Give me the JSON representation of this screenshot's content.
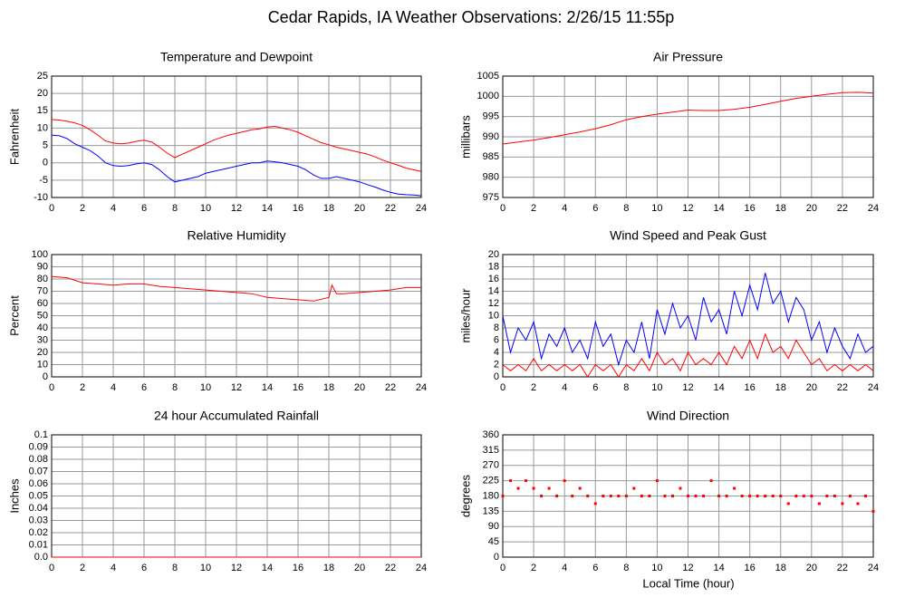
{
  "title": "Cedar Rapids, IA Weather Observations: 2/26/15 11:55p",
  "xlabel": "Local Time (hour)",
  "chart_data": [
    {
      "type": "line",
      "title": "Temperature and Dewpoint",
      "ylabel": "Fahrenheit",
      "x": [
        0,
        0.5,
        1,
        1.5,
        2,
        2.5,
        3,
        3.5,
        4,
        4.5,
        5,
        5.5,
        6,
        6.5,
        7,
        7.5,
        8,
        8.5,
        9,
        9.5,
        10,
        10.5,
        11,
        11.5,
        12,
        12.5,
        13,
        13.5,
        14,
        14.5,
        15,
        15.5,
        16,
        16.5,
        17,
        17.5,
        18,
        18.5,
        19,
        19.5,
        20,
        20.5,
        21,
        21.5,
        22,
        22.5,
        23,
        23.5,
        24
      ],
      "series": [
        {
          "color": "#ff0000",
          "values": [
            12.5,
            12.3,
            12,
            11.5,
            10.8,
            9.5,
            8,
            6.3,
            5.7,
            5.5,
            5.7,
            6.2,
            6.5,
            6,
            4.5,
            2.8,
            1.5,
            2.5,
            3.5,
            4.5,
            5.5,
            6.5,
            7.3,
            8,
            8.5,
            9,
            9.5,
            9.8,
            10.3,
            10.5,
            10,
            9.5,
            8.8,
            7.8,
            6.8,
            5.8,
            5.2,
            4.5,
            4,
            3.5,
            3,
            2.5,
            1.7,
            0.8,
            0,
            -0.7,
            -1.5,
            -2,
            -2.5
          ]
        },
        {
          "color": "#0000ff",
          "values": [
            8,
            7.8,
            7,
            5.5,
            4.5,
            3.5,
            2,
            0,
            -0.8,
            -1,
            -0.8,
            -0.3,
            0,
            -0.5,
            -2,
            -4,
            -5.5,
            -5,
            -4.5,
            -4,
            -3,
            -2.5,
            -2,
            -1.5,
            -1,
            -0.5,
            0,
            0,
            0.5,
            0.3,
            0,
            -0.5,
            -1,
            -2,
            -3.5,
            -4.5,
            -4.5,
            -4,
            -4.5,
            -5,
            -5.5,
            -6.3,
            -7,
            -7.8,
            -8.5,
            -9,
            -9.2,
            -9.3,
            -9.5
          ]
        }
      ],
      "xlim": [
        0,
        24
      ],
      "xticks": [
        0,
        2,
        4,
        6,
        8,
        10,
        12,
        14,
        16,
        18,
        20,
        22,
        24
      ],
      "ylim": [
        -10,
        25
      ],
      "yticks": [
        -10,
        -5,
        0,
        5,
        10,
        15,
        20,
        25
      ],
      "grid": true
    },
    {
      "type": "line",
      "title": "Air Pressure",
      "ylabel": "millibars",
      "x": [
        0,
        1,
        2,
        3,
        4,
        5,
        6,
        7,
        8,
        9,
        10,
        11,
        12,
        13,
        14,
        15,
        16,
        17,
        18,
        19,
        20,
        21,
        22,
        23,
        24
      ],
      "series": [
        {
          "color": "#ff0000",
          "values": [
            988.2,
            988.7,
            989.2,
            989.8,
            990.5,
            991.2,
            992,
            993,
            994.2,
            995,
            995.6,
            996.1,
            996.6,
            996.5,
            996.5,
            996.8,
            997.3,
            998,
            998.8,
            999.5,
            1000,
            1000.5,
            1000.9,
            1001,
            1000.8
          ]
        }
      ],
      "xlim": [
        0,
        24
      ],
      "xticks": [
        0,
        2,
        4,
        6,
        8,
        10,
        12,
        14,
        16,
        18,
        20,
        22,
        24
      ],
      "ylim": [
        975,
        1005
      ],
      "yticks": [
        975,
        980,
        985,
        990,
        995,
        1000,
        1005
      ],
      "grid": true
    },
    {
      "type": "line",
      "title": "Relative Humidity",
      "ylabel": "Percent",
      "x": [
        0,
        1,
        2,
        3,
        4,
        5,
        6,
        7,
        8,
        9,
        10,
        11,
        12,
        13,
        14,
        15,
        16,
        17,
        18,
        18.2,
        18.5,
        19,
        20,
        21,
        22,
        23,
        24
      ],
      "series": [
        {
          "color": "#ff0000",
          "values": [
            82,
            81,
            77,
            76,
            75,
            76,
            76,
            74,
            73,
            72,
            71,
            70,
            69,
            68,
            65,
            64,
            63,
            62,
            65,
            75,
            68,
            68,
            69,
            70,
            71,
            73,
            73
          ]
        }
      ],
      "xlim": [
        0,
        24
      ],
      "xticks": [
        0,
        2,
        4,
        6,
        8,
        10,
        12,
        14,
        16,
        18,
        20,
        22,
        24
      ],
      "ylim": [
        0,
        100
      ],
      "yticks": [
        0,
        10,
        20,
        30,
        40,
        50,
        60,
        70,
        80,
        90,
        100
      ],
      "grid": true
    },
    {
      "type": "line",
      "title": "Wind Speed and Peak Gust",
      "ylabel": "miles/hour",
      "x": [
        0,
        0.5,
        1,
        1.5,
        2,
        2.5,
        3,
        3.5,
        4,
        4.5,
        5,
        5.5,
        6,
        6.5,
        7,
        7.5,
        8,
        8.5,
        9,
        9.5,
        10,
        10.5,
        11,
        11.5,
        12,
        12.5,
        13,
        13.5,
        14,
        14.5,
        15,
        15.5,
        16,
        16.5,
        17,
        17.5,
        18,
        18.5,
        19,
        19.5,
        20,
        20.5,
        21,
        21.5,
        22,
        22.5,
        23,
        23.5,
        24
      ],
      "series": [
        {
          "color": "#0000ff",
          "values": [
            10,
            4,
            8,
            6,
            9,
            3,
            7,
            5,
            8,
            4,
            6,
            3,
            9,
            5,
            7,
            2,
            6,
            4,
            9,
            3,
            11,
            7,
            12,
            8,
            10,
            6,
            13,
            9,
            11,
            7,
            14,
            10,
            15,
            11,
            17,
            12,
            14,
            9,
            13,
            11,
            6,
            9,
            4,
            8,
            5,
            3,
            7,
            4,
            5
          ]
        },
        {
          "color": "#ff0000",
          "values": [
            2,
            1,
            2,
            1,
            3,
            1,
            2,
            1,
            2,
            1,
            2,
            0,
            2,
            1,
            2,
            0,
            2,
            1,
            3,
            1,
            4,
            2,
            3,
            1,
            4,
            2,
            3,
            2,
            4,
            2,
            5,
            3,
            6,
            3,
            7,
            4,
            5,
            3,
            6,
            4,
            2,
            3,
            1,
            2,
            1,
            2,
            1,
            2,
            1
          ]
        }
      ],
      "xlim": [
        0,
        24
      ],
      "xticks": [
        0,
        2,
        4,
        6,
        8,
        10,
        12,
        14,
        16,
        18,
        20,
        22,
        24
      ],
      "ylim": [
        0,
        20
      ],
      "yticks": [
        0,
        2,
        4,
        6,
        8,
        10,
        12,
        14,
        16,
        18,
        20
      ],
      "grid": true
    },
    {
      "type": "line",
      "title": "24 hour Accumulated Rainfall",
      "ylabel": "Inches",
      "x": [
        0,
        24
      ],
      "series": [
        {
          "color": "#ff0000",
          "values": [
            0,
            0
          ]
        }
      ],
      "xlim": [
        0,
        24
      ],
      "xticks": [
        0,
        2,
        4,
        6,
        8,
        10,
        12,
        14,
        16,
        18,
        20,
        22,
        24
      ],
      "ylim": [
        0,
        0.1
      ],
      "yticks": [
        {
          "value": 0,
          "label": "0.0"
        },
        0.01,
        0.02,
        0.03,
        0.04,
        0.05,
        0.06,
        0.07,
        0.08,
        0.09,
        0.1
      ],
      "grid": true
    },
    {
      "type": "scatter",
      "title": "Wind Direction",
      "ylabel": "degrees",
      "x": [
        0,
        0.5,
        1,
        1.5,
        2,
        2.5,
        3,
        3.5,
        4,
        4.5,
        5,
        5.5,
        6,
        6.5,
        7,
        7.5,
        8,
        8.5,
        9,
        9.5,
        10,
        10.5,
        11,
        11.5,
        12,
        12.5,
        13,
        13.5,
        14,
        14.5,
        15,
        15.5,
        16,
        16.5,
        17,
        17.5,
        18,
        18.5,
        19,
        19.5,
        20,
        20.5,
        21,
        21.5,
        22,
        22.5,
        23,
        23.5,
        24
      ],
      "series": [
        {
          "color": "#ff0000",
          "values": [
            180,
            225,
            202.5,
            225,
            202.5,
            180,
            202.5,
            180,
            225,
            180,
            202.5,
            180,
            157.5,
            180,
            180,
            180,
            180,
            202.5,
            180,
            180,
            225,
            180,
            180,
            202.5,
            180,
            180,
            180,
            225,
            180,
            180,
            202.5,
            180,
            180,
            180,
            180,
            180,
            180,
            157.5,
            180,
            180,
            180,
            157.5,
            180,
            180,
            157.5,
            180,
            157.5,
            180,
            135
          ]
        }
      ],
      "xlim": [
        0,
        24
      ],
      "xticks": [
        0,
        2,
        4,
        6,
        8,
        10,
        12,
        14,
        16,
        18,
        20,
        22,
        24
      ],
      "ylim": [
        0,
        360
      ],
      "yticks": [
        0,
        45,
        90,
        135,
        180,
        225,
        270,
        315,
        360
      ],
      "grid": true
    }
  ]
}
